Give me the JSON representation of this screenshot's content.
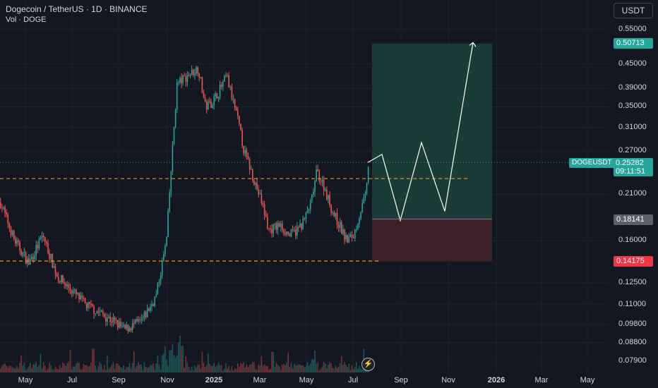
{
  "header": {
    "title": "Dogecoin / TetherUS · 1D · BINANCE",
    "volume_label": "Vol · DOGE"
  },
  "currency_button": "USDT",
  "price_axis": {
    "scale": "log",
    "labels": [
      "0.55000",
      "0.45000",
      "0.39000",
      "0.35000",
      "0.31000",
      "0.27000",
      "0.21000",
      "0.16000",
      "0.12500",
      "0.11000",
      "0.09800",
      "0.08800",
      "0.07900"
    ]
  },
  "time_axis": {
    "labels": [
      "May",
      "Jul",
      "Sep",
      "Nov",
      "2025",
      "Mar",
      "May",
      "Jul",
      "Sep",
      "Nov",
      "2026",
      "Mar",
      "May"
    ],
    "bold": [
      "2025",
      "2026"
    ]
  },
  "symbol_tag": "DOGEUSDT",
  "last_price": "0.25282",
  "countdown": "09:11:51",
  "position": {
    "target_price": "0.50713",
    "entry_price": "0.18141",
    "stop_price": "0.14175"
  },
  "levels": {
    "upper_dashed": 0.23,
    "lower_dashed": 0.142
  },
  "projection_path_prices": [
    0.2528,
    0.265,
    0.18,
    0.284,
    0.19,
    0.51
  ],
  "colors": {
    "background": "#131722",
    "up": "#26a69a",
    "down": "#ef5350",
    "dashed_level": "#f7931a",
    "target_zone": "#1b3b38",
    "stop_zone": "#3e2128"
  },
  "icons": {
    "replay": "lightning-icon"
  }
}
